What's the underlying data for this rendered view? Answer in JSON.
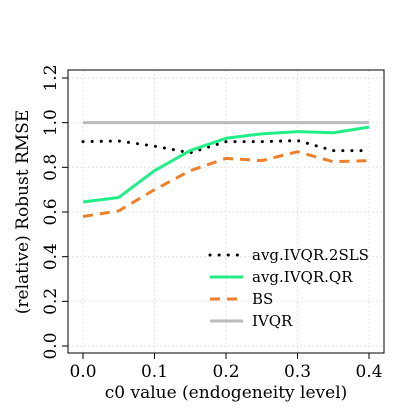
{
  "chart_data": {
    "type": "line",
    "title": "",
    "xlabel": "c0 value (endogeneity level)",
    "ylabel": "(relative) Robust RMSE",
    "xlim": [
      0.0,
      0.4
    ],
    "ylim": [
      0.0,
      1.2
    ],
    "xticks": [
      "0.0",
      "0.1",
      "0.2",
      "0.3",
      "0.4"
    ],
    "yticks": [
      "0.0",
      "0.2",
      "0.4",
      "0.6",
      "0.8",
      "1.0",
      "1.2"
    ],
    "grid": true,
    "legend_position": "bottom-right",
    "x": [
      0.0,
      0.05,
      0.1,
      0.15,
      0.2,
      0.25,
      0.3,
      0.35,
      0.4
    ],
    "series": [
      {
        "name": "avg.IVQR.2SLS",
        "color": "#000000",
        "style": "dotted",
        "values": [
          0.915,
          0.918,
          0.895,
          0.865,
          0.915,
          0.915,
          0.92,
          0.875,
          0.875
        ]
      },
      {
        "name": "avg.IVQR.QR",
        "color": "#22ee88",
        "style": "solid",
        "values": [
          0.645,
          0.665,
          0.785,
          0.875,
          0.93,
          0.95,
          0.96,
          0.955,
          0.98
        ]
      },
      {
        "name": "BS",
        "color": "#f07f2a",
        "style": "dashed",
        "values": [
          0.58,
          0.605,
          0.7,
          0.785,
          0.84,
          0.83,
          0.87,
          0.825,
          0.83
        ]
      },
      {
        "name": "IVQR",
        "color": "#bbbbbb",
        "style": "solid",
        "values": [
          1.0,
          1.0,
          1.0,
          1.0,
          1.0,
          1.0,
          1.0,
          1.0,
          1.0
        ]
      }
    ]
  }
}
